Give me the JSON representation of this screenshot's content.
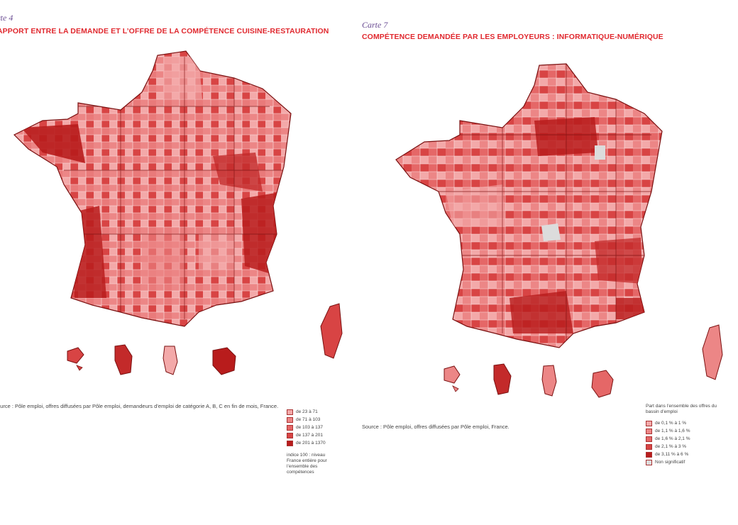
{
  "left_map": {
    "carte_label": "rte 4",
    "title": "APPORT ENTRE LA DEMANDE ET L’OFFRE DE LA COMPÉTENCE CUISINE-RESTAURATION",
    "source": "ource : Pôle emploi, offres diffusées par Pôle emploi, demandeurs d’emploi de catégorie A, B, C en fin de mois, France.",
    "legend": {
      "title": "",
      "items": [
        {
          "label": "de 23 à 71",
          "color": "#f3a9a9"
        },
        {
          "label": "de 71 à 103",
          "color": "#ec8686"
        },
        {
          "label": "de 103 à 137",
          "color": "#e56767"
        },
        {
          "label": "de 137 à 201",
          "color": "#d84444"
        },
        {
          "label": "de 201 à 1370",
          "color": "#b81c1c"
        }
      ],
      "note": "indice 100 : niveau France entière pour l’ensemble des compétences"
    }
  },
  "right_map": {
    "carte_label": "Carte 7",
    "title": "COMPÉTENCE DEMANDÉE PAR LES EMPLOYEURS : INFORMATIQUE-NUMÉRIQUE",
    "source": "Source : Pôle emploi, offres diffusées par Pôle emploi, France.",
    "legend": {
      "title": "Part dans l’ensemble des offres du bassin d’emploi",
      "items": [
        {
          "label": "de 0,1 % à 1 %",
          "color": "#f3a9a9"
        },
        {
          "label": "de 1,1 % à 1,6 %",
          "color": "#ec8686"
        },
        {
          "label": "de 1,6 % à 2,1 %",
          "color": "#e56767"
        },
        {
          "label": "de 2,1 % à 3 %",
          "color": "#d84444"
        },
        {
          "label": "de 3,11 % à 6 %",
          "color": "#b81c1c"
        },
        {
          "label": "Non significatif",
          "color": "#dcdcdc"
        }
      ],
      "note": ""
    }
  },
  "colors": {
    "title": "#e0282e",
    "carte_label": "#6a4c93",
    "border": "#7a1010"
  }
}
